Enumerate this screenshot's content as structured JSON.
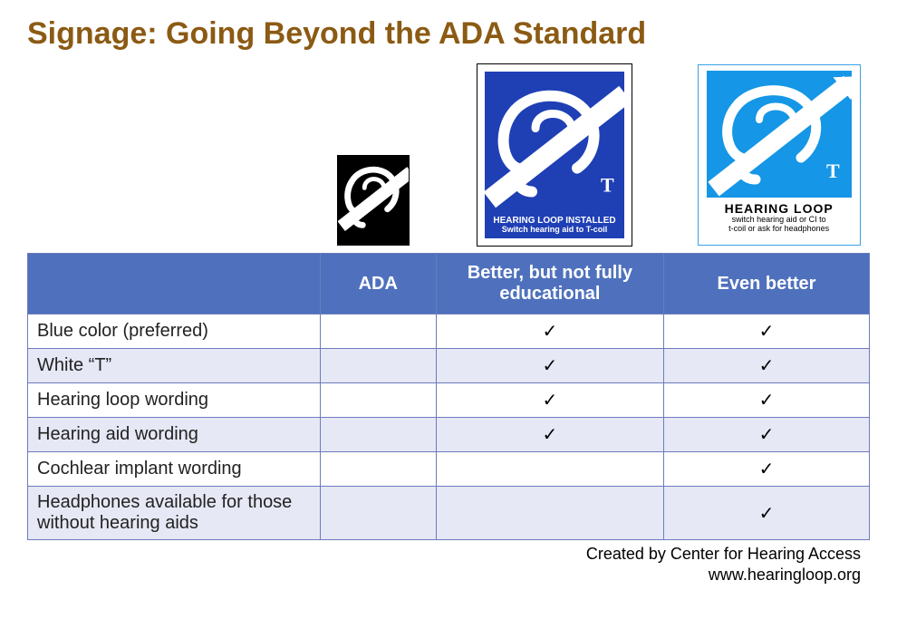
{
  "title": "Signage: Going Beyond the ADA Standard",
  "title_color": "#8b5a13",
  "title_fontsize": 34,
  "signs": {
    "ada": {
      "bg": "#000000",
      "fg": "#ffffff"
    },
    "better": {
      "bg": "#1f3fb5",
      "fg": "#ffffff",
      "line1": "HEARING LOOP INSTALLED",
      "line2": "Switch hearing aid to T-coil"
    },
    "best": {
      "tile_bg": "#1596e6",
      "fg": "#ffffff",
      "line1": "HEARING LOOP",
      "line2": "switch hearing aid or CI to",
      "line3": "t-coil or ask for headphones"
    }
  },
  "table": {
    "header_bg": "#4f71bd",
    "header_fg": "#ffffff",
    "alt_row_bg": "#e6e8f5",
    "border_color": "#6c7bbd",
    "check_glyph": "✓",
    "columns": [
      "",
      "ADA",
      "Better, but not fully educational",
      "Even better"
    ],
    "rows": [
      {
        "label": "Blue color (preferred)",
        "ada": false,
        "better": true,
        "best": true
      },
      {
        "label": "White “T”",
        "ada": false,
        "better": true,
        "best": true
      },
      {
        "label": "Hearing loop wording",
        "ada": false,
        "better": true,
        "best": true
      },
      {
        "label": "Hearing aid wording",
        "ada": false,
        "better": true,
        "best": true
      },
      {
        "label": "Cochlear implant wording",
        "ada": false,
        "better": false,
        "best": true
      },
      {
        "label": "Headphones available for those without hearing aids",
        "ada": false,
        "better": false,
        "best": true
      }
    ]
  },
  "credit": {
    "line1": "Created by Center for Hearing Access",
    "line2": "www.hearingloop.org"
  }
}
